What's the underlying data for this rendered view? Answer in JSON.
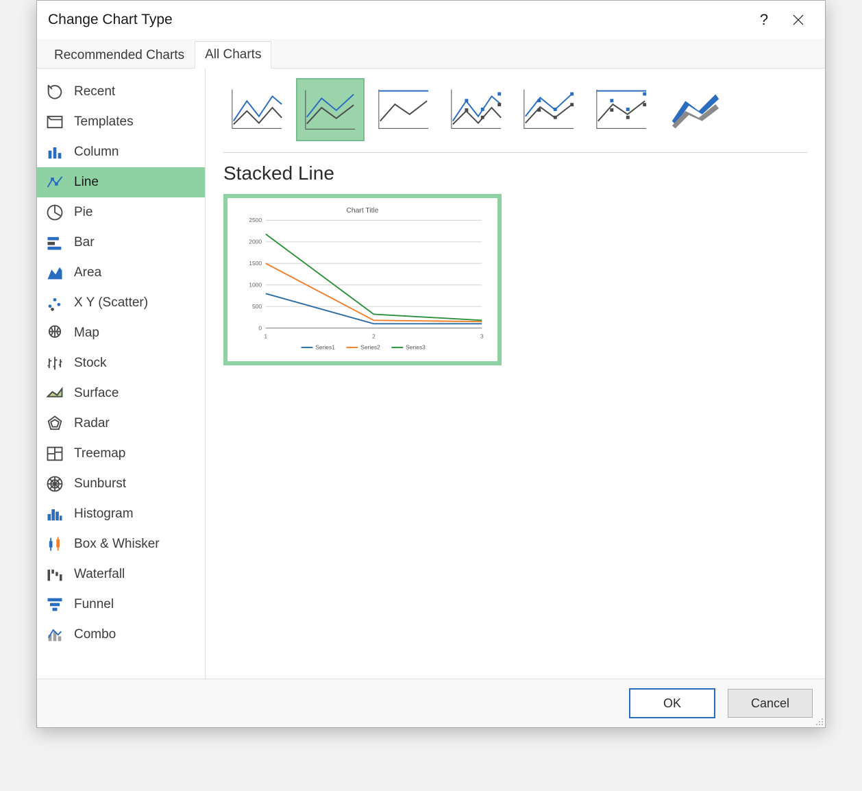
{
  "window": {
    "title": "Change Chart Type"
  },
  "tabs": {
    "recommended": "Recommended Charts",
    "all": "All Charts",
    "active": "all"
  },
  "categories": [
    {
      "id": "recent",
      "label": "Recent"
    },
    {
      "id": "templates",
      "label": "Templates"
    },
    {
      "id": "column",
      "label": "Column"
    },
    {
      "id": "line",
      "label": "Line"
    },
    {
      "id": "pie",
      "label": "Pie"
    },
    {
      "id": "bar",
      "label": "Bar"
    },
    {
      "id": "area",
      "label": "Area"
    },
    {
      "id": "scatter",
      "label": "X Y (Scatter)"
    },
    {
      "id": "map",
      "label": "Map"
    },
    {
      "id": "stock",
      "label": "Stock"
    },
    {
      "id": "surface",
      "label": "Surface"
    },
    {
      "id": "radar",
      "label": "Radar"
    },
    {
      "id": "treemap",
      "label": "Treemap"
    },
    {
      "id": "sunburst",
      "label": "Sunburst"
    },
    {
      "id": "histogram",
      "label": "Histogram"
    },
    {
      "id": "boxwhisker",
      "label": "Box & Whisker"
    },
    {
      "id": "waterfall",
      "label": "Waterfall"
    },
    {
      "id": "funnel",
      "label": "Funnel"
    },
    {
      "id": "combo",
      "label": "Combo"
    }
  ],
  "selected_category": "line",
  "subtypes": [
    {
      "id": "line",
      "markers": false,
      "style": "line"
    },
    {
      "id": "stacked-line",
      "markers": false,
      "style": "stacked"
    },
    {
      "id": "100stacked-line",
      "markers": false,
      "style": "100stacked"
    },
    {
      "id": "line-markers",
      "markers": true,
      "style": "line"
    },
    {
      "id": "stacked-line-markers",
      "markers": true,
      "style": "stacked"
    },
    {
      "id": "100stacked-line-markers",
      "markers": true,
      "style": "100stacked"
    },
    {
      "id": "3d-line",
      "markers": false,
      "style": "3d"
    }
  ],
  "selected_subtype": "stacked-line",
  "section_title": "Stacked Line",
  "preview_chart": {
    "type": "stacked-line",
    "title": "Chart Title",
    "title_fontsize": 11,
    "xcategories": [
      "1",
      "2",
      "3"
    ],
    "series": [
      {
        "name": "Series1",
        "color": "#2e6ca4",
        "values": [
          800,
          100,
          100
        ]
      },
      {
        "name": "Series2",
        "color": "#f07f2e",
        "values": [
          1500,
          180,
          150
        ]
      },
      {
        "name": "Series3",
        "color": "#2f8f3d",
        "values": [
          2180,
          320,
          180
        ]
      }
    ],
    "ylim": [
      0,
      2500
    ],
    "ytick_step": 500,
    "yticks_labels": [
      "0",
      "500",
      "1000",
      "1500",
      "2000",
      "2500"
    ],
    "axis_fontsize": 9,
    "grid_color": "#d0d0d0",
    "axis_color": "#808080",
    "background": "#ffffff"
  },
  "buttons": {
    "ok": "OK",
    "cancel": "Cancel"
  },
  "accent": {
    "selection_green": "#8ed1a2",
    "blue": "#2a6cc0"
  }
}
